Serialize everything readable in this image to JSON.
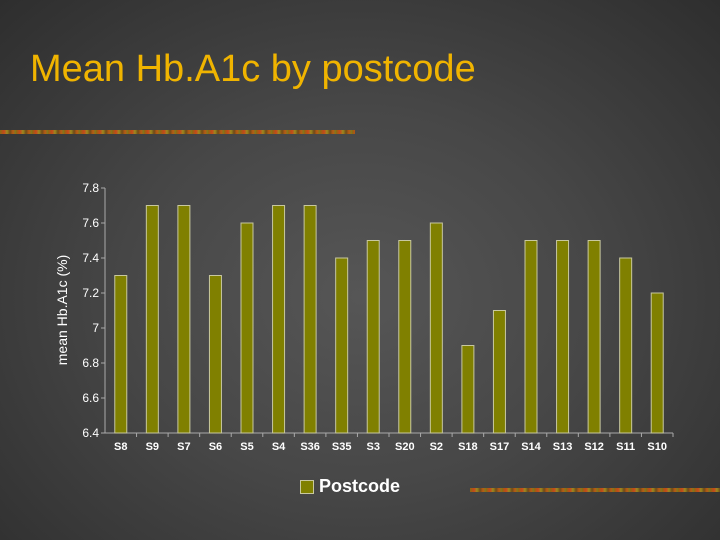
{
  "slide": {
    "title": "Mean Hb.A1c by postcode"
  },
  "colors": {
    "title": "#f0b400",
    "bar_fill": "#808000",
    "bar_stroke": "#c8c8a0",
    "axis": "#aaaaaa",
    "text": "#ffffff"
  },
  "chart_data": {
    "type": "bar",
    "categories": [
      "S8",
      "S9",
      "S7",
      "S6",
      "S5",
      "S4",
      "S36",
      "S35",
      "S3",
      "S20",
      "S2",
      "S18",
      "S17",
      "S14",
      "S13",
      "S12",
      "S11",
      "S10"
    ],
    "series": [
      {
        "name": "Postcode",
        "values": [
          7.3,
          7.7,
          7.7,
          7.3,
          7.6,
          7.7,
          7.7,
          7.4,
          7.5,
          7.5,
          7.6,
          6.9,
          7.1,
          7.5,
          7.5,
          7.5,
          7.4,
          7.2
        ]
      }
    ],
    "ylabel": "mean Hb.A1c (%)",
    "xlabel": "",
    "ylim": [
      6.4,
      7.8
    ],
    "yticks": [
      "7.8",
      "7.6",
      "7.4",
      "7.2",
      "7",
      "6.8",
      "6.6",
      "6.4"
    ],
    "grid": false,
    "legend_position": "bottom"
  }
}
